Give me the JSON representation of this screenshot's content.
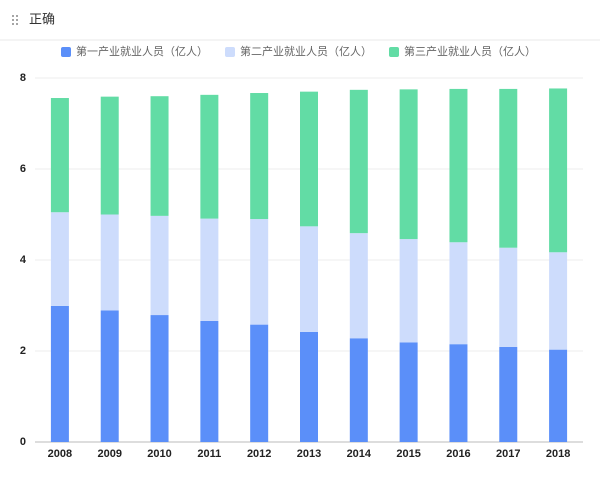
{
  "header": {
    "title": "正确"
  },
  "chart_data": {
    "type": "stacked-bar",
    "categories": [
      "2008",
      "2009",
      "2010",
      "2011",
      "2012",
      "2013",
      "2014",
      "2015",
      "2016",
      "2017",
      "2018"
    ],
    "series": [
      {
        "name": "第一产业就业人员（亿人）",
        "color": "#5b8ff9",
        "values": [
          2.99,
          2.89,
          2.79,
          2.66,
          2.58,
          2.42,
          2.28,
          2.19,
          2.15,
          2.09,
          2.03
        ]
      },
      {
        "name": "第二产业就业人员（亿人）",
        "color": "#cddcfc",
        "values": [
          2.06,
          2.11,
          2.18,
          2.25,
          2.32,
          2.32,
          2.31,
          2.27,
          2.24,
          2.18,
          2.14
        ]
      },
      {
        "name": "第三产业就业人员（亿人）",
        "color": "#62dca5",
        "values": [
          2.51,
          2.59,
          2.63,
          2.72,
          2.77,
          2.96,
          3.15,
          3.29,
          3.37,
          3.49,
          3.6
        ]
      }
    ],
    "ylim": [
      0,
      8
    ],
    "yticks": [
      0,
      2,
      4,
      6,
      8
    ],
    "grid": true
  }
}
